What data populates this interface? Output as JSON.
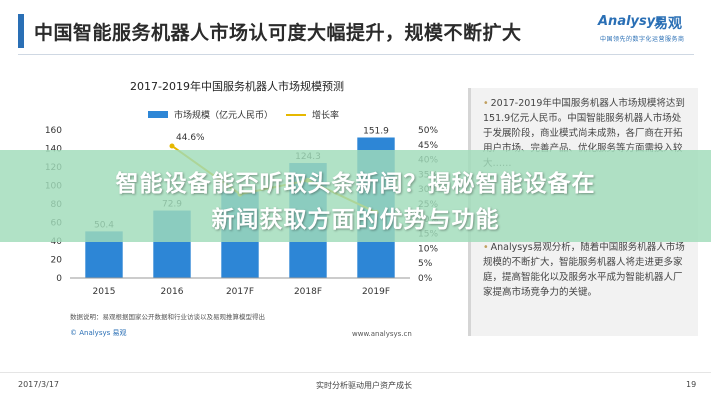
{
  "slide": {
    "title": "中国智能服务机器人市场认可度大幅提升，规模不断扩大",
    "logo_brand": "Analysys",
    "logo_brand_cn": "易观",
    "logo_tagline": "中国领先的数字化运营服务商"
  },
  "chart_data": {
    "type": "bar",
    "title": "2017-2019年中国服务机器人市场规模预测",
    "categories": [
      "2015",
      "2016",
      "2017F",
      "2018F",
      "2019F"
    ],
    "series": [
      {
        "name": "市场规模（亿元人民币）",
        "type": "bar",
        "axis": "left",
        "color": "#2d86d6",
        "values": [
          50.4,
          72.9,
          93.5,
          124.3,
          151.9
        ]
      },
      {
        "name": "增长率",
        "type": "line",
        "axis": "right",
        "color": "#e6b800",
        "values": [
          null,
          44.6,
          28.3,
          33.0,
          22.2
        ]
      }
    ],
    "data_labels": {
      "bars": [
        "50.4",
        "72.9",
        "",
        "124.3",
        "151.9"
      ],
      "line": [
        "",
        "44.6%",
        "",
        "",
        ""
      ]
    },
    "ylim": [
      0,
      160
    ],
    "yticks": [
      "0",
      "20",
      "40",
      "60",
      "80",
      "100",
      "120",
      "140",
      "160"
    ],
    "y2lim": [
      0,
      50
    ],
    "y2ticks": [
      "0%",
      "5%",
      "10%",
      "15%",
      "20%",
      "25%",
      "30%",
      "35%",
      "40%",
      "45%",
      "50%"
    ],
    "legend_position": "top",
    "grid": false,
    "xlabel": "",
    "ylabel": ""
  },
  "chart_footer": {
    "source": "数据说明：易观根据国家公开数据和行业访谈以及易观推算模型得出",
    "logo": "© Analysys 易观",
    "url": "www.analysys.cn"
  },
  "panel": {
    "bullet_1": "2017-2019年中国服务机器人市场规模将达到151.9亿元人民币。中国智能服务机器人市场处于发展阶段，商业模式尚未成熟，各厂商在开拓用户市场、完善产品、优化服务等方面需投入较大……",
    "bullet_2": "Analysys易观分析，随着中国服务机器人市场规模的不断扩大，智能服务机器人将走进更多家庭，提高智能化以及服务水平成为智能机器人厂家提高市场竞争力的关键。"
  },
  "footer": {
    "date": "2017/3/17",
    "center": "实时分析驱动用户资产成长",
    "page": "19"
  },
  "overlay": {
    "line_1": "智能设备能否听取头条新闻？揭秘智能设备在",
    "line_2": "新闻获取方面的优势与功能",
    "color": "#a0dcb9"
  }
}
